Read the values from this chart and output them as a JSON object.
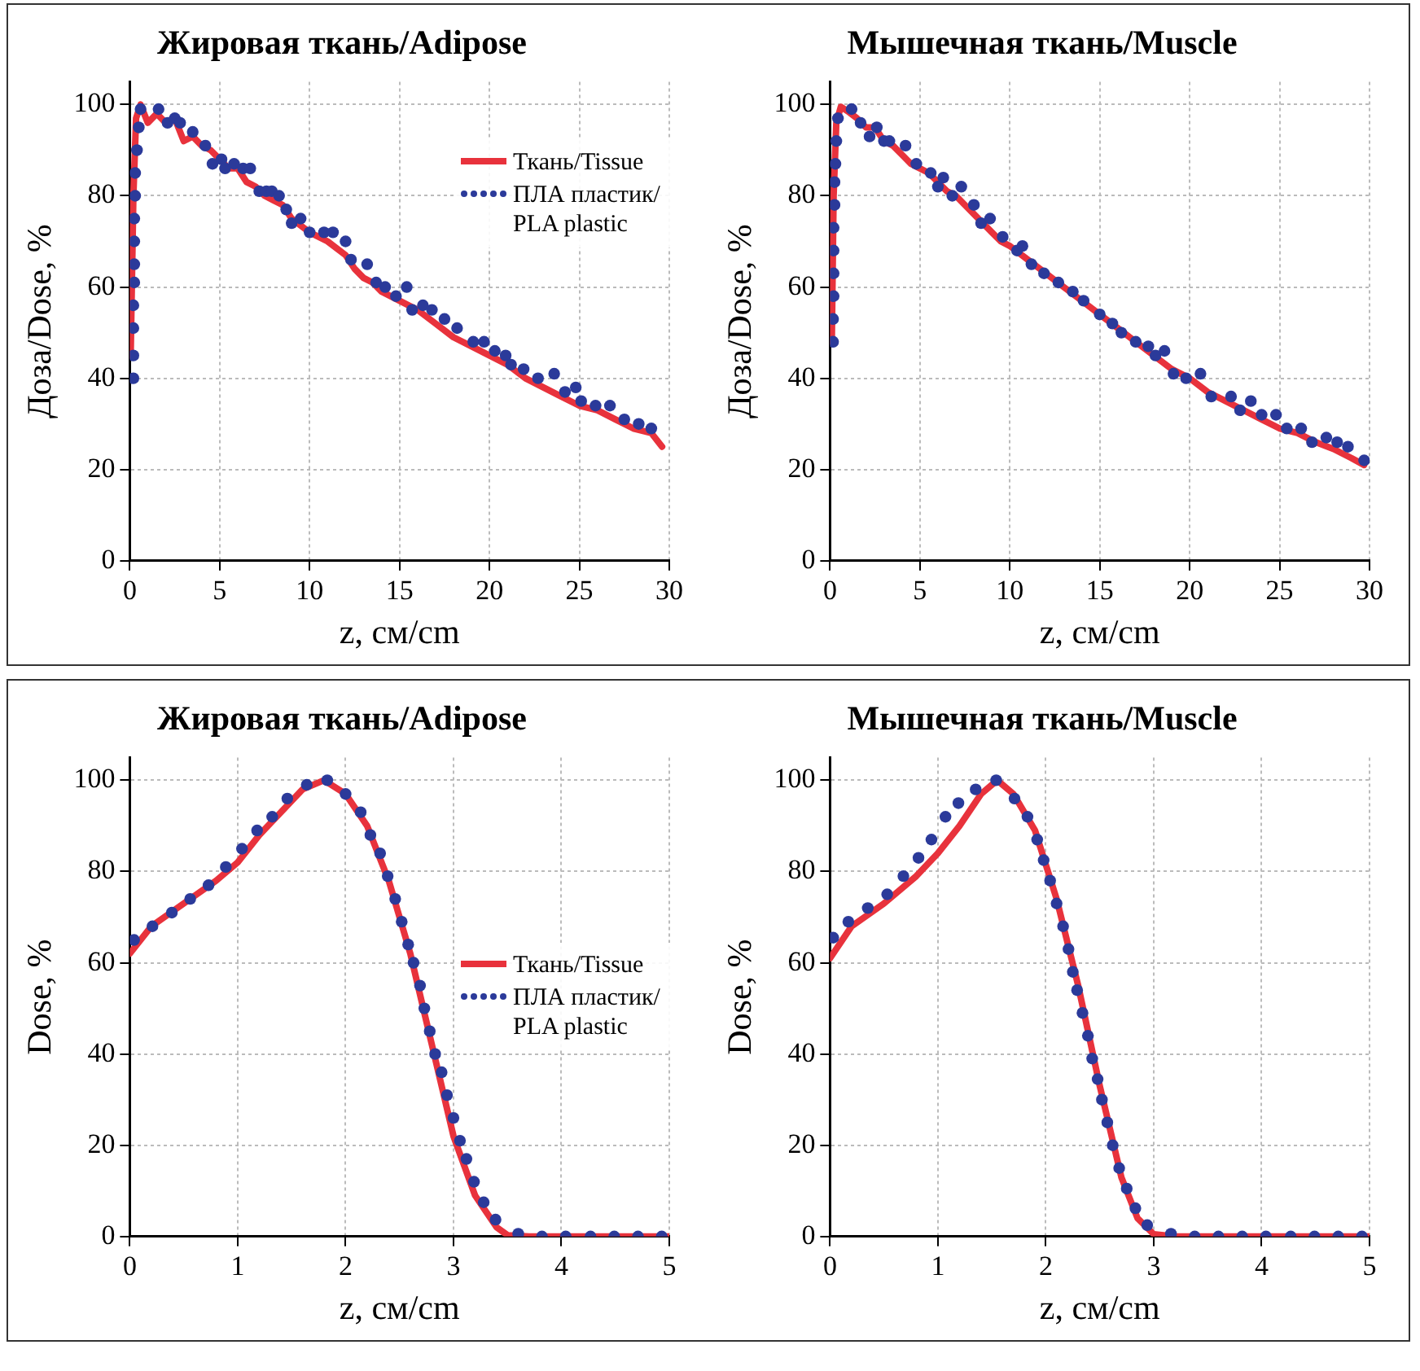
{
  "chart_data": [
    {
      "type": "line",
      "title": "Жировая ткань/Adipose",
      "xlabel": "z, см/cm",
      "ylabel": "Доза/Dose, %",
      "xlim": [
        0,
        30
      ],
      "xticks": [
        0,
        5,
        10,
        15,
        20,
        25,
        30
      ],
      "ylim": [
        0,
        105
      ],
      "yticks": [
        0,
        20,
        40,
        60,
        80,
        100
      ],
      "grid": true,
      "legend": "top right",
      "series": [
        {
          "name": "Ткань/Tissue",
          "line_style": "solid",
          "color": "#e8323c",
          "x": [
            0.05,
            0.2,
            0.35,
            0.6,
            1,
            1.5,
            2,
            2.5,
            3,
            3.5,
            4,
            4.5,
            5,
            5.5,
            6,
            6.5,
            7,
            7.5,
            8,
            8.5,
            9,
            10,
            11,
            12,
            12.5,
            13,
            13.5,
            14,
            15,
            16,
            17,
            18,
            19,
            20,
            21,
            22,
            23,
            24,
            25,
            26,
            27,
            28,
            29,
            29.6
          ],
          "values": [
            45,
            80,
            97,
            100,
            96,
            98,
            96,
            97,
            92,
            93,
            91,
            90,
            88,
            86,
            86,
            83,
            82,
            80,
            79,
            78,
            75,
            72,
            70,
            67,
            64,
            62,
            61,
            59,
            57,
            55,
            52,
            49,
            47,
            45,
            43,
            40,
            38,
            36,
            34,
            33,
            31,
            29,
            28,
            25
          ]
        },
        {
          "name": "ПЛА пластик/PLA plastic",
          "type": "scatter",
          "marker": "circle",
          "color": "#2b3a9a",
          "x": [
            0.2,
            0.2,
            0.2,
            0.2,
            0.25,
            0.25,
            0.25,
            0.25,
            0.3,
            0.3,
            0.4,
            0.5,
            0.6,
            1.6,
            2.1,
            2.5,
            2.8,
            3.5,
            4.2,
            4.6,
            5.1,
            5.3,
            5.8,
            6.3,
            6.7,
            7.2,
            7.6,
            7.9,
            8.3,
            8.7,
            9,
            9.5,
            10,
            10.8,
            11.3,
            12,
            12.3,
            13.2,
            13.7,
            14.2,
            14.8,
            15.4,
            15.7,
            16.3,
            16.8,
            17.5,
            18.2,
            19.1,
            19.7,
            20.3,
            20.9,
            21.2,
            21.9,
            22.7,
            23.6,
            24.2,
            24.8,
            25.1,
            25.9,
            26.7,
            27.5,
            28.3,
            29
          ],
          "values": [
            40,
            45,
            51,
            56,
            61,
            65,
            70,
            75,
            80,
            85,
            90,
            95,
            99,
            99,
            96,
            97,
            96,
            94,
            91,
            87,
            88,
            86,
            87,
            86,
            86,
            81,
            81,
            81,
            80,
            77,
            74,
            75,
            72,
            72,
            72,
            70,
            66,
            65,
            61,
            60,
            58,
            60,
            55,
            56,
            55,
            53,
            51,
            48,
            48,
            46,
            45,
            43,
            42,
            40,
            41,
            37,
            38,
            35,
            34,
            34,
            31,
            30,
            29
          ]
        }
      ]
    },
    {
      "type": "line",
      "title": "Мышечная ткань/Muscle",
      "xlabel": "z, см/cm",
      "ylabel": "Доза/Dose, %",
      "xlim": [
        0,
        30
      ],
      "xticks": [
        0,
        5,
        10,
        15,
        20,
        25,
        30
      ],
      "ylim": [
        0,
        105
      ],
      "yticks": [
        0,
        20,
        40,
        60,
        80,
        100
      ],
      "grid": true,
      "series": [
        {
          "line_style": "solid",
          "color": "#e8323c",
          "x": [
            0.1,
            0.2,
            0.35,
            0.6,
            1,
            1.5,
            2,
            2.5,
            3,
            3.5,
            4,
            4.5,
            5,
            5.5,
            6,
            6.5,
            7,
            7.5,
            8,
            8.5,
            9,
            9.5,
            10,
            11,
            12,
            13,
            14,
            15,
            16,
            17,
            18,
            19,
            20,
            21,
            22,
            23,
            24,
            25,
            26,
            27,
            28,
            29,
            29.7
          ],
          "values": [
            48,
            80,
            96,
            99.5,
            98.5,
            97,
            95,
            95,
            92,
            91,
            89,
            87,
            86,
            85,
            83,
            81,
            80,
            78,
            76,
            74,
            72,
            70,
            69,
            66,
            63,
            60,
            57,
            54,
            51,
            48,
            45,
            42,
            40,
            37,
            35,
            33,
            31,
            29,
            28,
            26,
            24.5,
            22.5,
            21
          ]
        },
        {
          "type": "scatter",
          "marker": "circle",
          "color": "#2b3a9a",
          "x": [
            0.17,
            0.17,
            0.2,
            0.2,
            0.2,
            0.2,
            0.25,
            0.25,
            0.3,
            0.35,
            0.44,
            1.2,
            1.7,
            2.2,
            2.6,
            3,
            3.3,
            4.2,
            4.8,
            5.6,
            6,
            6.3,
            6.8,
            7.3,
            8,
            8.4,
            8.9,
            9.6,
            10.4,
            10.7,
            11.2,
            11.9,
            12.7,
            13.5,
            14.1,
            15,
            15.7,
            16.2,
            17,
            17.7,
            18.1,
            18.6,
            19.1,
            19.8,
            20.6,
            21.2,
            22.3,
            22.8,
            23.4,
            24,
            24.8,
            25.4,
            26.2,
            26.8,
            27.6,
            28.2,
            28.8,
            29.7
          ],
          "values": [
            48,
            53,
            58,
            63,
            68,
            73,
            78,
            83,
            87,
            92,
            97,
            99,
            96,
            93,
            95,
            92,
            92,
            91,
            87,
            85,
            82,
            84,
            80,
            82,
            78,
            74,
            75,
            71,
            68,
            69,
            65,
            63,
            61,
            59,
            57,
            54,
            52,
            50,
            48,
            47,
            45,
            46,
            41,
            40,
            41,
            36,
            36,
            33,
            35,
            32,
            32,
            29,
            29,
            26,
            27,
            26,
            25,
            22
          ]
        }
      ]
    },
    {
      "type": "line",
      "title": "Жировая ткань/Adipose",
      "xlabel": "z, см/cm",
      "ylabel": "Dose, %",
      "xlim": [
        0,
        5
      ],
      "xticks": [
        0,
        1,
        2,
        3,
        4,
        5
      ],
      "ylim": [
        0,
        105
      ],
      "yticks": [
        0,
        20,
        40,
        60,
        80,
        100
      ],
      "grid": true,
      "legend": "right",
      "series": [
        {
          "name": "Ткань/Tissue",
          "line_style": "solid",
          "color": "#e8323c",
          "x": [
            0,
            0.2,
            0.5,
            0.8,
            1,
            1.2,
            1.4,
            1.6,
            1.8,
            2,
            2.2,
            2.4,
            2.6,
            2.8,
            3,
            3.2,
            3.4,
            3.5,
            3.7,
            5
          ],
          "values": [
            62,
            68,
            73,
            78,
            82,
            88,
            93,
            98,
            100,
            97,
            90,
            78,
            62,
            42,
            22,
            9,
            2,
            0.3,
            0,
            0
          ]
        },
        {
          "name": "ПЛА пластик/PLA plastic",
          "type": "scatter",
          "marker": "circle",
          "color": "#2b3a9a",
          "x": [
            0.04,
            0.21,
            0.39,
            0.56,
            0.73,
            0.89,
            1.04,
            1.18,
            1.32,
            1.46,
            1.64,
            1.83,
            2,
            2.14,
            2.23,
            2.32,
            2.39,
            2.46,
            2.52,
            2.58,
            2.63,
            2.69,
            2.73,
            2.78,
            2.83,
            2.89,
            2.94,
            3,
            3.06,
            3.12,
            3.19,
            3.28,
            3.39,
            3.6,
            3.82,
            4.04,
            4.27,
            4.49,
            4.71,
            4.93
          ],
          "values": [
            65,
            68,
            71,
            74,
            77,
            81,
            85,
            89,
            92,
            96,
            99,
            100,
            97,
            93,
            88,
            84,
            79,
            74,
            69,
            64,
            60,
            55,
            50,
            45,
            40,
            36,
            31,
            26,
            21,
            17,
            12,
            7.5,
            3.7,
            0.6,
            0,
            0,
            0,
            0,
            0,
            0
          ]
        }
      ]
    },
    {
      "type": "line",
      "title": "Мышечная ткань/Muscle",
      "xlabel": "z, см/cm",
      "ylabel": "Dose, %",
      "xlim": [
        0,
        5
      ],
      "xticks": [
        0,
        1,
        2,
        3,
        4,
        5
      ],
      "ylim": [
        0,
        105
      ],
      "yticks": [
        0,
        20,
        40,
        60,
        80,
        100
      ],
      "grid": true,
      "series": [
        {
          "line_style": "solid",
          "color": "#e8323c",
          "x": [
            0,
            0.2,
            0.5,
            0.8,
            1,
            1.2,
            1.4,
            1.55,
            1.7,
            1.9,
            2.1,
            2.3,
            2.5,
            2.7,
            2.85,
            3,
            3.2,
            5
          ],
          "values": [
            61,
            68,
            73,
            79,
            84,
            90,
            97,
            100,
            97,
            89,
            74,
            55,
            33,
            13,
            4,
            0.5,
            0,
            0
          ]
        },
        {
          "type": "scatter",
          "marker": "circle",
          "color": "#2b3a9a",
          "x": [
            0.03,
            0.17,
            0.35,
            0.53,
            0.68,
            0.82,
            0.94,
            1.07,
            1.19,
            1.35,
            1.54,
            1.71,
            1.83,
            1.92,
            1.98,
            2.04,
            2.1,
            2.16,
            2.21,
            2.25,
            2.29,
            2.34,
            2.39,
            2.43,
            2.48,
            2.52,
            2.57,
            2.62,
            2.68,
            2.75,
            2.83,
            2.94,
            3.16,
            3.38,
            3.6,
            3.82,
            4.04,
            4.27,
            4.49,
            4.71,
            4.93
          ],
          "values": [
            65.5,
            69,
            72,
            75,
            79,
            83,
            87,
            92,
            95,
            98,
            100,
            96,
            92,
            87,
            82.5,
            78,
            73,
            68,
            63,
            58,
            54,
            49,
            44,
            39,
            34.5,
            30,
            25,
            20,
            15,
            10.5,
            6.2,
            2.5,
            0.6,
            0,
            0,
            0,
            0,
            0,
            0,
            0,
            0
          ]
        }
      ]
    }
  ]
}
